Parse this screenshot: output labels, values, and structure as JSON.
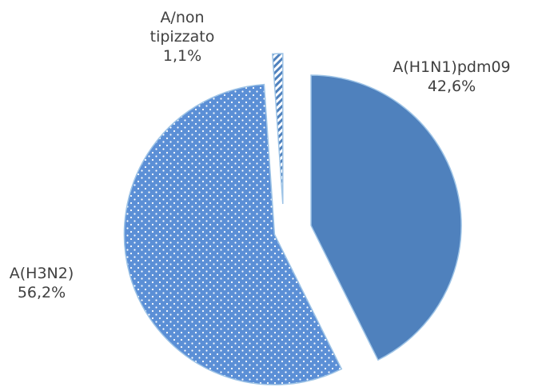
{
  "chart_data": {
    "type": "pie",
    "categories": [
      "A(H1N1)pdm09",
      "A(H3N2)",
      "A/non tipizzato"
    ],
    "values": [
      42.6,
      56.2,
      1.1
    ],
    "value_labels": [
      "42,6%",
      "56,2%",
      "1,1%"
    ],
    "colors": [
      "#4f81bd",
      "#5b8fd6",
      "#4f81bd"
    ]
  }
}
